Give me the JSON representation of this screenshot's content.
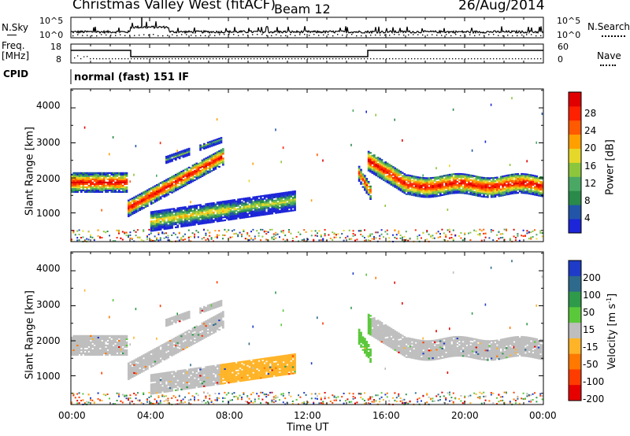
{
  "header": {
    "station": "Christmas Valley West (fitACF)",
    "beam": "Beam 12",
    "date": "26/Aug/2014"
  },
  "top_panels": {
    "noise": {
      "left_label": "N.Sky",
      "right_label": "N.Search",
      "right_style": "dotted",
      "left_ticks": [
        "10^5",
        "10^0"
      ],
      "right_ticks": [
        "10^5",
        "10^0"
      ]
    },
    "frequency": {
      "left_label_1": "Freq.",
      "left_label_2": "[MHz]",
      "left_ticks": [
        "18",
        "8"
      ],
      "right_label": "Nave",
      "right_style": "dotted",
      "right_ticks": [
        "60",
        "0"
      ]
    },
    "cpid": {
      "label": "CPID",
      "value": "normal (fast) 151 IF"
    }
  },
  "chart_data": [
    {
      "type": "heatmap",
      "name": "power",
      "xlabel": "Time UT",
      "ylabel": "Slant Range [km]",
      "x_ticks": [
        "00:00",
        "04:00",
        "08:00",
        "12:00",
        "16:00",
        "20:00",
        "00:00"
      ],
      "xlim_hours": [
        0,
        24
      ],
      "y_ticks": [
        1000,
        2000,
        3000,
        4000
      ],
      "ylim_km": [
        180,
        4540
      ],
      "colorbar": {
        "label": "Power [dB]",
        "ticks": [
          "4",
          "8",
          "12",
          "16",
          "20",
          "24",
          "28"
        ],
        "colors": [
          "#1c25d8",
          "#2255a8",
          "#2a8a4a",
          "#4aa864",
          "#8cc63c",
          "#e6d82a",
          "#ffa000",
          "#ff5a00",
          "#ff2000",
          "#e00000"
        ]
      },
      "features": [
        {
          "desc": "ionospheric band",
          "t_start": 0.0,
          "t_end": 2.8,
          "range_km": 1850
        },
        {
          "desc": "rising band",
          "t_start": 2.8,
          "t_end": 7.7,
          "range_start_km": 1100,
          "range_end_km": 2600
        },
        {
          "desc": "lower band",
          "t_start": 4.0,
          "t_end": 11.4,
          "range_start_km": 800,
          "range_end_km": 1400
        },
        {
          "desc": "dusk band",
          "t_start": 15.0,
          "t_end": 24.0,
          "range_km": 1750
        }
      ]
    },
    {
      "type": "heatmap",
      "name": "velocity",
      "xlabel": "Time UT",
      "ylabel": "Slant Range [km]",
      "x_ticks": [
        "00:00",
        "04:00",
        "08:00",
        "12:00",
        "16:00",
        "20:00",
        "00:00"
      ],
      "xlim_hours": [
        0,
        24
      ],
      "y_ticks": [
        1000,
        2000,
        3000,
        4000
      ],
      "ylim_km": [
        180,
        4540
      ],
      "colorbar": {
        "label": "Velocity [m s",
        "label_sup": "-1",
        "label_end": "]",
        "ticks": [
          "200",
          "100",
          "50",
          "15",
          "-15",
          "-50",
          "-100",
          "-200"
        ],
        "colors": [
          "#1e3cc8",
          "#2e6a8c",
          "#2e9a4a",
          "#5ac83a",
          "#bebebe",
          "#ffb428",
          "#ff7800",
          "#ff3c00",
          "#e60000"
        ]
      }
    }
  ]
}
